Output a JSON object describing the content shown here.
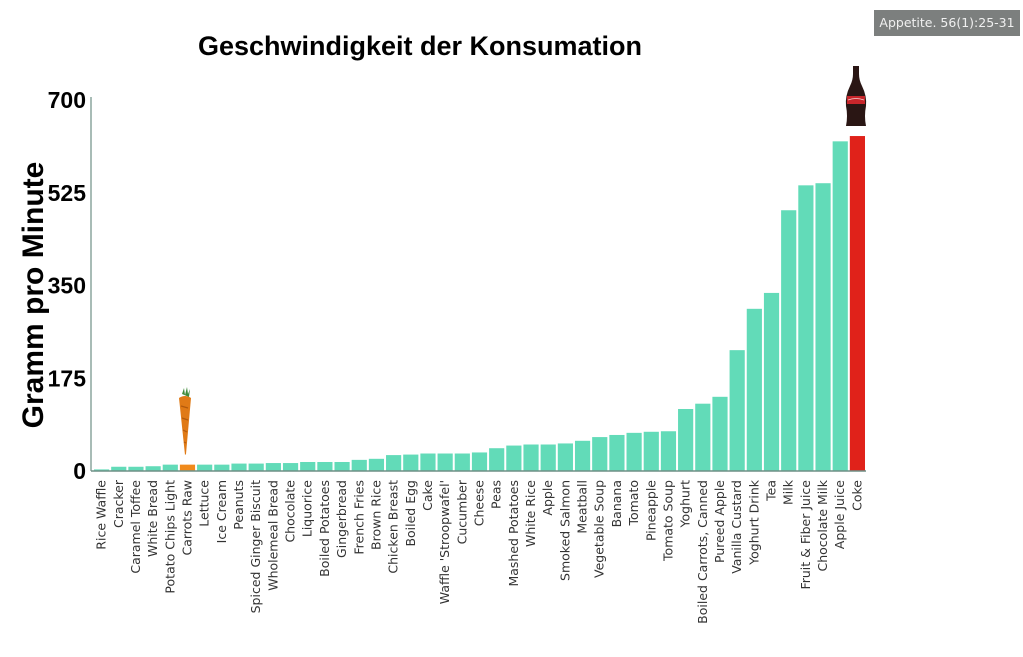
{
  "source_badge": "Appetite. 56(1):25-31",
  "colors": {
    "bar": "#62dbb8",
    "highlight_carrot": "#f08a1c",
    "highlight_coke": "#e0221a",
    "axis": "#6f8f86"
  },
  "icons": {
    "carrot": "carrot-icon",
    "coke": "coke-bottle-icon"
  },
  "chart_data": {
    "type": "bar",
    "title": "Geschwindigkeit der Konsumation",
    "xlabel": "",
    "ylabel": "Gramm pro Minute",
    "ylim": [
      0,
      700
    ],
    "yticks": [
      "0",
      "175",
      "350",
      "525",
      "700"
    ],
    "grid": false,
    "categories": [
      "Rice Waffle",
      "Cracker",
      "Caramel Toffee",
      "White Bread",
      "Potato Chips Light",
      "Carrots Raw",
      "Lettuce",
      "Ice Cream",
      "Peanuts",
      "Spiced Ginger Biscuit",
      "Wholemeal Bread",
      "Chocolate",
      "Liquorice",
      "Boiled Potatoes",
      "Gingerbread",
      "French Fries",
      "Brown Rice",
      "Chicken Breast",
      "Boiled Egg",
      "Cake",
      "Waffle 'Stroopwafel'",
      "Cucumber",
      "Cheese",
      "Peas",
      "Mashed Potatoes",
      "White Rice",
      "Apple",
      "Smoked Salmon",
      "Meatball",
      "Vegetable Soup",
      "Banana",
      "Tomato",
      "Pineapple",
      "Tomato Soup",
      "Yoghurt",
      "Boiled Carrots, Canned",
      "Pureed Apple",
      "Vanilla Custard",
      "Yoghurt Drink",
      "Tea",
      "Milk",
      "Fruit & Fiber Juice",
      "Chocolate Milk",
      "Apple Juice",
      "Coke"
    ],
    "values": [
      3,
      8,
      8,
      9,
      12,
      12,
      12,
      12,
      14,
      14,
      15,
      15,
      17,
      17,
      17,
      21,
      23,
      30,
      31,
      33,
      33,
      33,
      35,
      43,
      48,
      50,
      50,
      52,
      57,
      64,
      68,
      72,
      74,
      75,
      117,
      127,
      140,
      228,
      306,
      336,
      492,
      539,
      543,
      622,
      632
    ],
    "highlighted": {
      "Carrots Raw": "highlight_carrot",
      "Coke": "highlight_coke"
    }
  }
}
